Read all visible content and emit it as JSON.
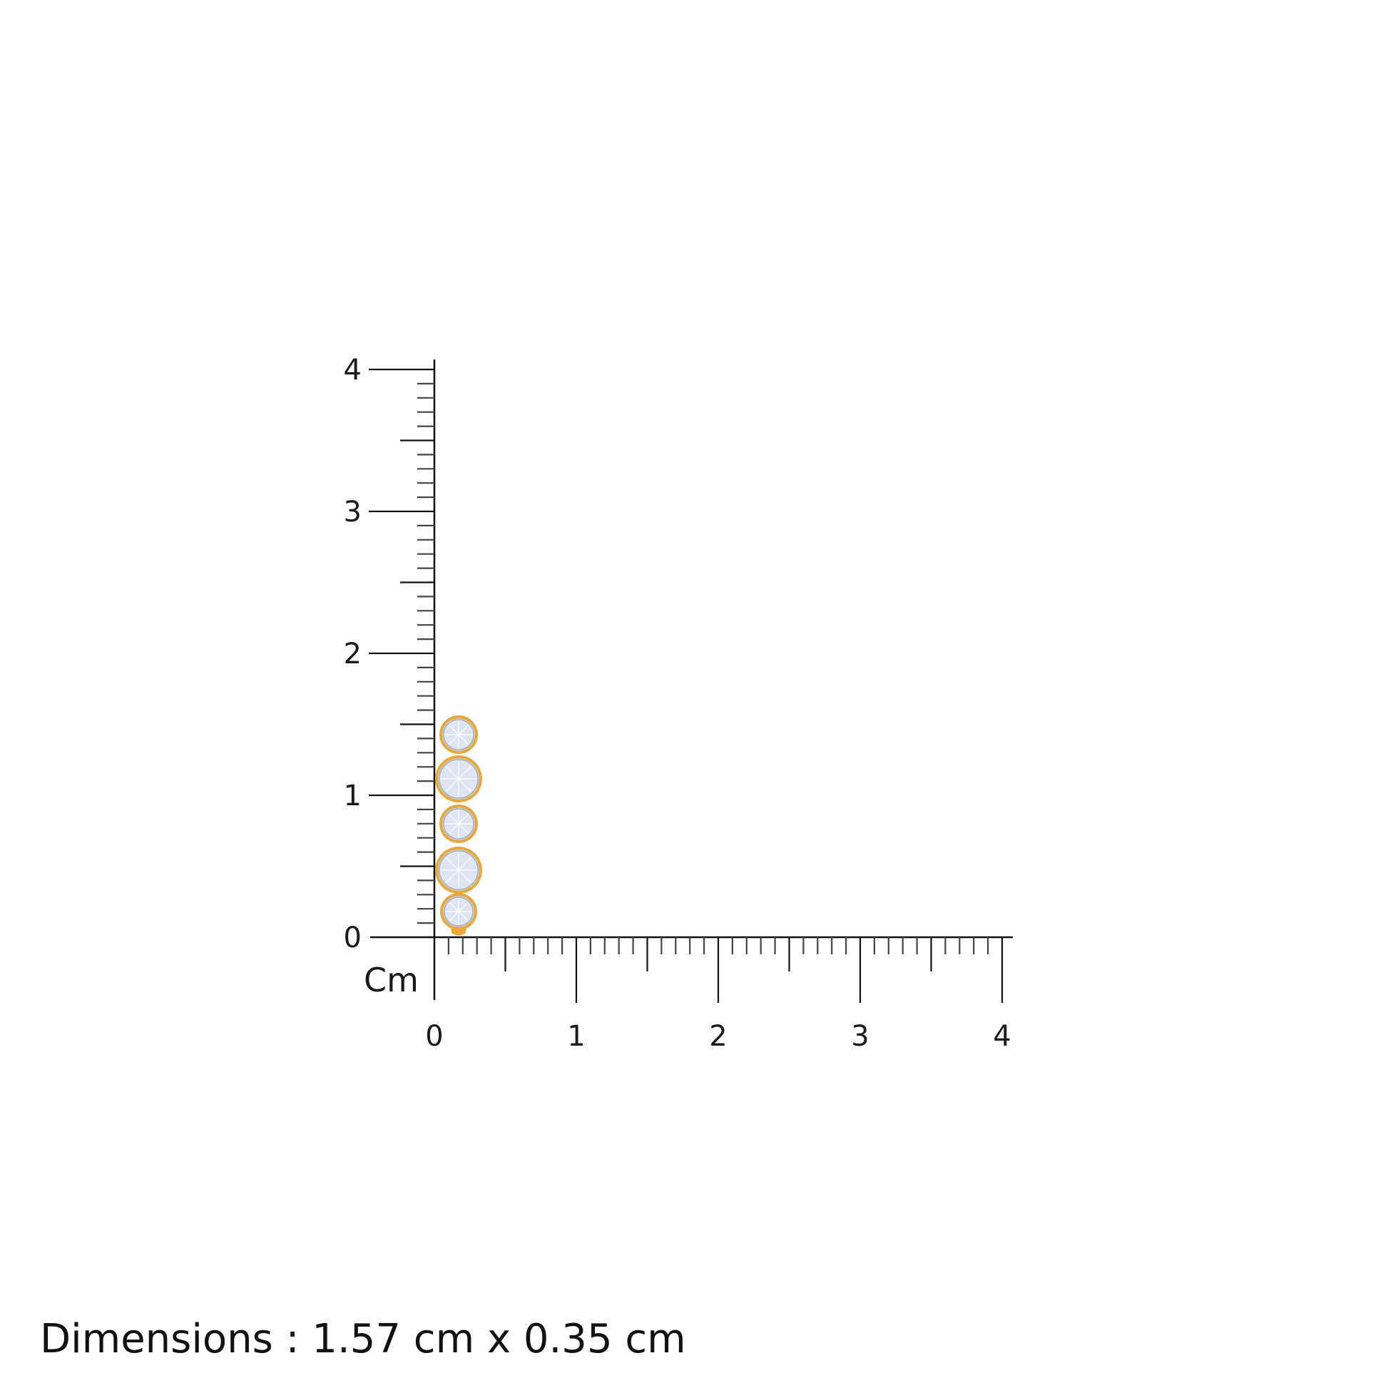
{
  "ruler": {
    "unit_label": "Cm",
    "x_ticks": [
      "0",
      "1",
      "2",
      "3",
      "4"
    ],
    "y_ticks": [
      "0",
      "1",
      "2",
      "3",
      "4"
    ],
    "range_cm": [
      0,
      4
    ],
    "minor_step_cm": 0.1
  },
  "product": {
    "type": "earring",
    "stone_count": 5,
    "metal_color": "#e8a93a",
    "stone_color": "#dfe6f2",
    "bezel_color": "#c9ccd2"
  },
  "dimensions_text": "Dimensions : 1.57 cm x 0.35 cm"
}
